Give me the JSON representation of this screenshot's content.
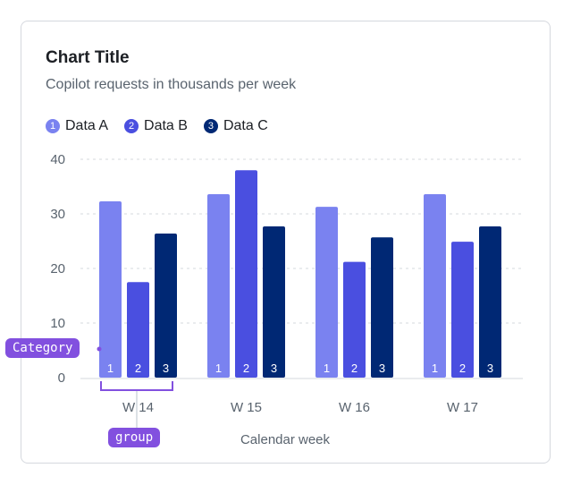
{
  "chart_data": {
    "type": "bar",
    "title": "Chart Title",
    "subtitle": "Copilot requests in thousands per week",
    "categories": [
      "W 14",
      "W 15",
      "W 16",
      "W 17"
    ],
    "series": [
      {
        "name": "Data A",
        "badge": "1",
        "color": "#7a82f0",
        "values": [
          32.3,
          33.6,
          31.3,
          33.6
        ]
      },
      {
        "name": "Data B",
        "badge": "2",
        "color": "#4a4fe0",
        "values": [
          17.5,
          38.0,
          21.2,
          24.9
        ]
      },
      {
        "name": "Data C",
        "badge": "3",
        "color": "#002874",
        "values": [
          26.4,
          27.7,
          25.7,
          27.7
        ]
      }
    ],
    "xlabel": "Calendar week",
    "ylabel": "",
    "ylim": [
      0,
      40
    ],
    "yticks": [
      0,
      10,
      20,
      30,
      40
    ],
    "grid": true,
    "legend_position": "top-left"
  },
  "annotations": {
    "category_label": "Category",
    "group_label": "group",
    "accent": "#8250df"
  }
}
